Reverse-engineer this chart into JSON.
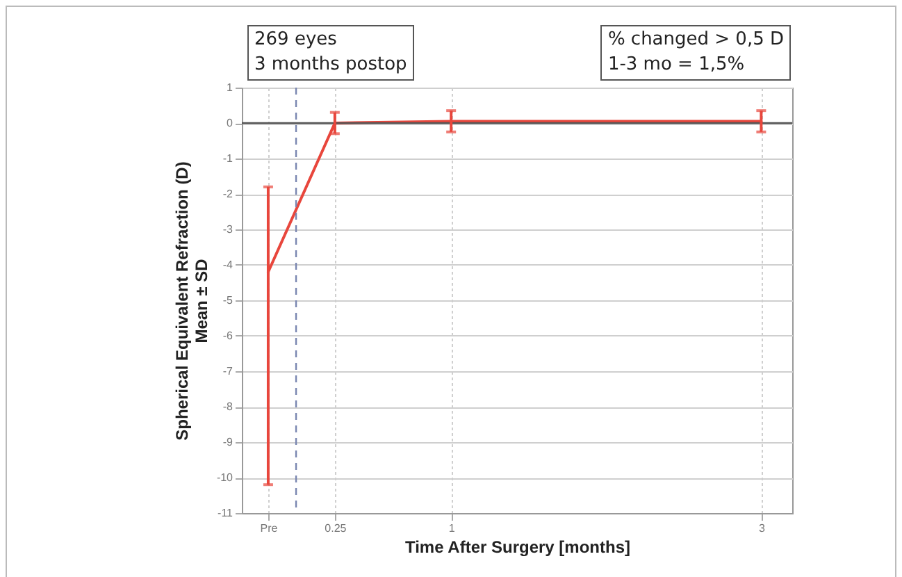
{
  "chart_data": {
    "type": "line",
    "xlabel": "Time After Surgery [months]",
    "ylabel": "Spherical Equivalent Refraction (D)\nMean ± SD",
    "x": [
      -0.18,
      0.25,
      1,
      3
    ],
    "series": [
      {
        "color": "#e8463c",
        "values": [
          -4.2,
          0,
          0.05,
          0.05
        ],
        "errors": [
          [
            -10.2,
            -1.8
          ],
          0.3,
          0.3,
          0.3
        ]
      }
    ],
    "xlim": [
      -0.35,
      3.2
    ],
    "xticks": [
      {
        "value": -0.18,
        "label": "Pre"
      },
      0.25,
      1,
      3
    ],
    "ylim": [
      -11,
      1
    ],
    "yticks": [
      -11,
      -10,
      -9,
      -8,
      -7,
      -6,
      -5,
      -4,
      -3,
      -2,
      -1,
      0,
      1
    ],
    "grid": true,
    "marker": "none",
    "line_style": "solid",
    "ref_lines": [
      {
        "axis": "x",
        "value": 0,
        "color": "#7a86b0",
        "line_style": "dashed"
      },
      {
        "axis": "y",
        "value": 0,
        "color": "#555555",
        "line_style": "solid"
      }
    ],
    "annotations": [
      "269 eyes\n3 months postop",
      "% changed > 0,5 D\n1-3 mo = 1,5%"
    ]
  }
}
